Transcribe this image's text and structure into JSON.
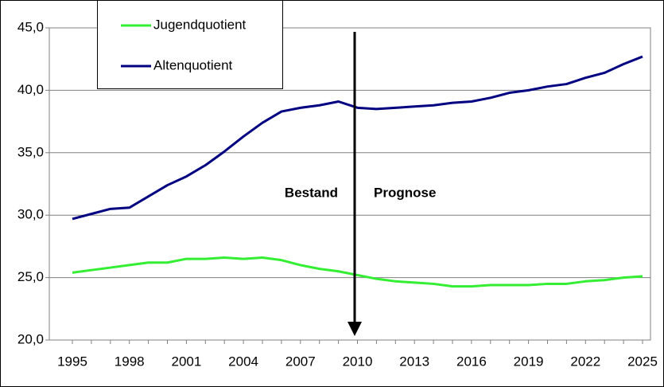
{
  "chart_data": {
    "type": "line",
    "categories": [
      1995,
      null,
      null,
      1998,
      null,
      null,
      2001,
      null,
      null,
      2004,
      null,
      null,
      2007,
      null,
      null,
      2010,
      null,
      null,
      2013,
      null,
      null,
      2016,
      null,
      null,
      2019,
      null,
      null,
      2022,
      null,
      null,
      2025
    ],
    "series": [
      {
        "name": "Jugendquotient",
        "color": "#33ee33",
        "values": [
          25.4,
          25.6,
          25.8,
          26.0,
          26.2,
          26.2,
          26.5,
          26.5,
          26.6,
          26.5,
          26.6,
          26.4,
          26.0,
          25.7,
          25.5,
          25.2,
          24.9,
          24.7,
          24.6,
          24.5,
          24.3,
          24.3,
          24.4,
          24.4,
          24.4,
          24.5,
          24.5,
          24.7,
          24.8,
          25.0,
          25.1
        ]
      },
      {
        "name": "Altenquotient",
        "color": "#000080",
        "values": [
          29.7,
          30.1,
          30.5,
          30.6,
          31.5,
          32.4,
          33.1,
          34.0,
          35.1,
          36.3,
          37.4,
          38.3,
          38.6,
          38.8,
          39.1,
          38.6,
          38.5,
          38.6,
          38.7,
          38.8,
          39.0,
          39.1,
          39.4,
          39.8,
          40.0,
          40.3,
          40.5,
          41.0,
          41.4,
          42.1,
          42.7
        ]
      }
    ],
    "ylim": [
      20,
      45
    ],
    "yticks": [
      {
        "value": 20,
        "label": "20,0"
      },
      {
        "value": 25,
        "label": "25,0"
      },
      {
        "value": 30,
        "label": "30,0"
      },
      {
        "value": 35,
        "label": "35,0"
      },
      {
        "value": 40,
        "label": "40,0"
      },
      {
        "value": 45,
        "label": "45,0"
      }
    ],
    "grid": true,
    "annotations": [
      "Bestand",
      "Prognose"
    ]
  }
}
